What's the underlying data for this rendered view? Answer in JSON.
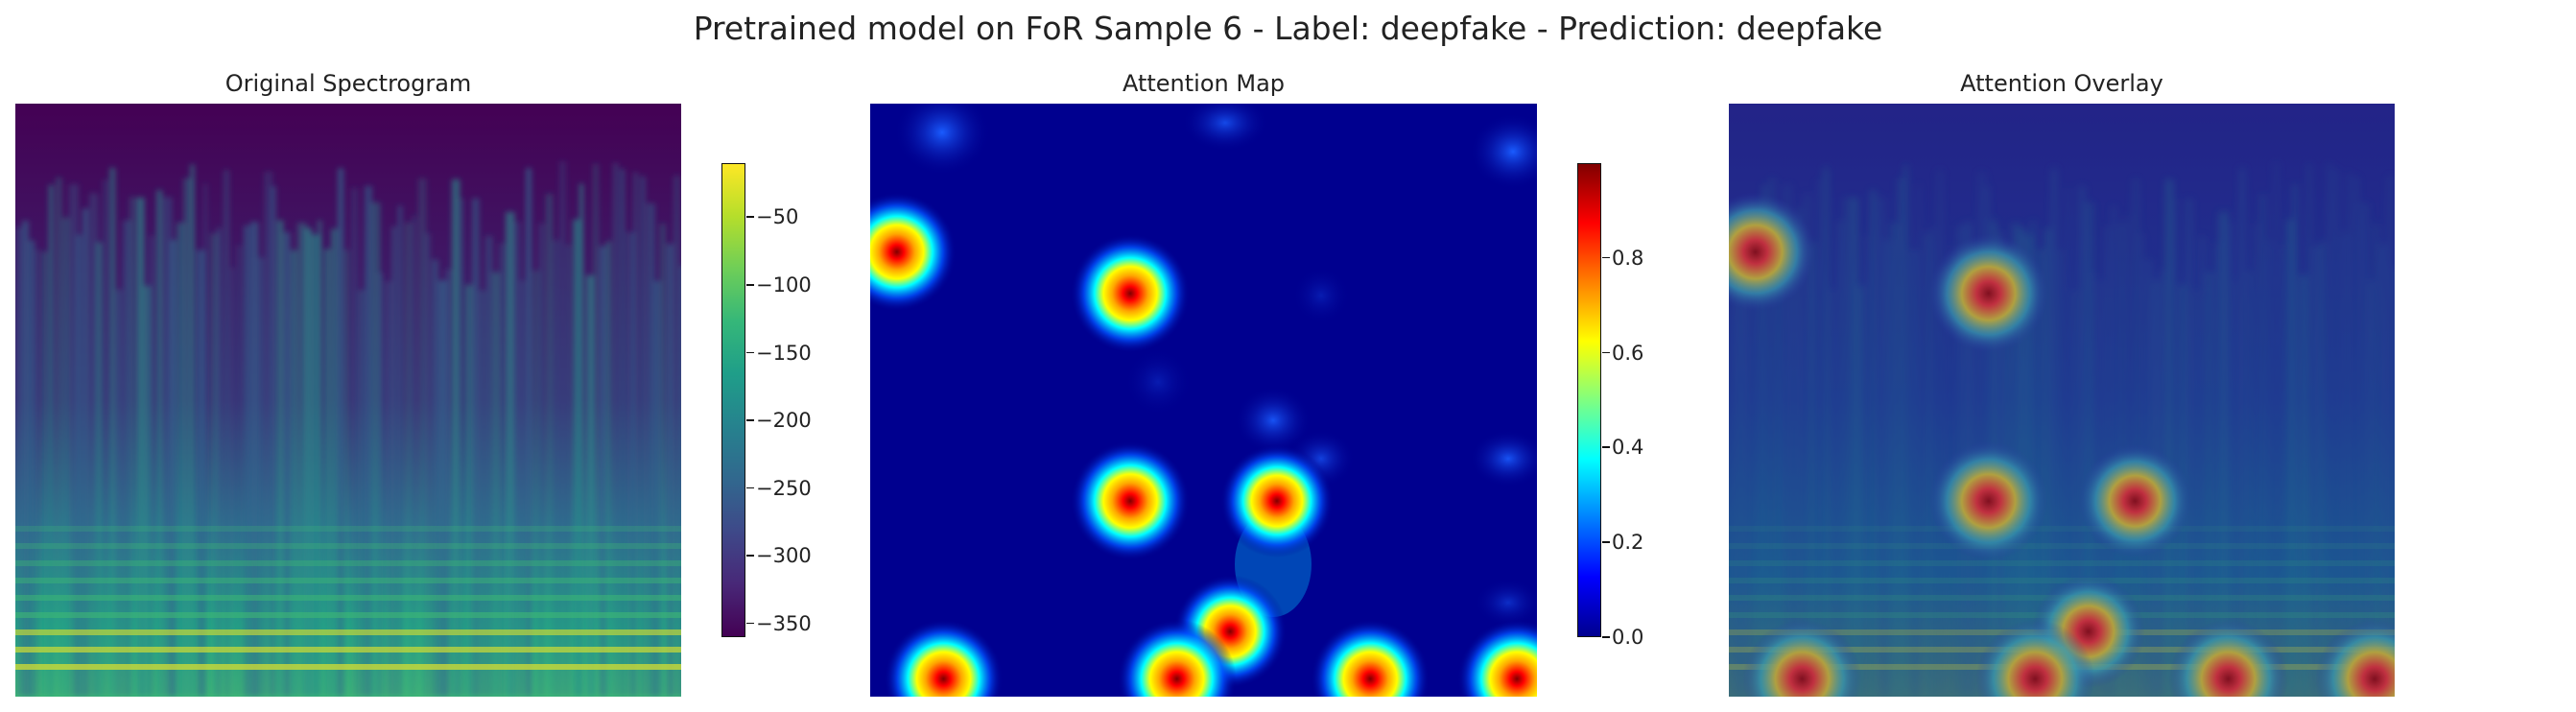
{
  "title": "Pretrained model on FoR Sample 6 - Label: deepfake - Prediction: deepfake",
  "chart_data": [
    {
      "type": "heatmap",
      "title": "Original Spectrogram",
      "colormap": "viridis",
      "colorbar": {
        "min": -360,
        "max": -10,
        "ticks": [
          "−50",
          "−100",
          "−150",
          "−200",
          "−250",
          "−300",
          "−350"
        ],
        "tick_values": [
          -50,
          -100,
          -150,
          -200,
          -250,
          -300,
          -350
        ]
      }
    },
    {
      "type": "heatmap",
      "title": "Attention Map",
      "colormap": "jet",
      "colorbar": {
        "min": 0,
        "max": 1,
        "ticks": [
          "0.8",
          "0.6",
          "0.4",
          "0.2",
          "0.0"
        ],
        "tick_values": [
          0.8,
          0.6,
          0.4,
          0.2,
          0.0
        ]
      },
      "hotspots": [
        {
          "x": 0.04,
          "y": 0.25,
          "value": 1.0
        },
        {
          "x": 0.39,
          "y": 0.32,
          "value": 1.0
        },
        {
          "x": 0.39,
          "y": 0.67,
          "value": 1.0
        },
        {
          "x": 0.61,
          "y": 0.67,
          "value": 0.95
        },
        {
          "x": 0.54,
          "y": 0.89,
          "value": 0.95
        },
        {
          "x": 0.11,
          "y": 0.97,
          "value": 1.0
        },
        {
          "x": 0.46,
          "y": 0.97,
          "value": 1.0
        },
        {
          "x": 0.75,
          "y": 0.97,
          "value": 1.0
        },
        {
          "x": 0.97,
          "y": 0.97,
          "value": 1.0
        }
      ]
    },
    {
      "type": "heatmap",
      "title": "Attention Overlay",
      "colormap": "jet over viridis"
    }
  ]
}
